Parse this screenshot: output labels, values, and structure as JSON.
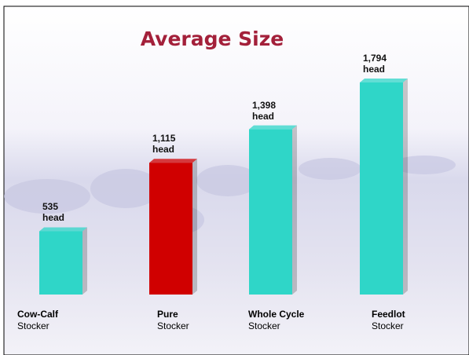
{
  "chart_data": {
    "type": "bar",
    "title": "Average Size",
    "categories": [
      "Cow-Calf",
      "Pure",
      "Whole Cycle",
      "Feedlot"
    ],
    "category_sublabels": [
      "Stocker",
      "Stocker",
      "Stocker",
      "Stocker"
    ],
    "values": [
      535,
      1115,
      1398,
      1794
    ],
    "value_labels": [
      "535 head",
      "1,115 head",
      "1,398 head",
      "1,794 head"
    ],
    "colors": [
      "#2fd6c8",
      "#d00000",
      "#2fd6c8",
      "#2fd6c8"
    ]
  }
}
